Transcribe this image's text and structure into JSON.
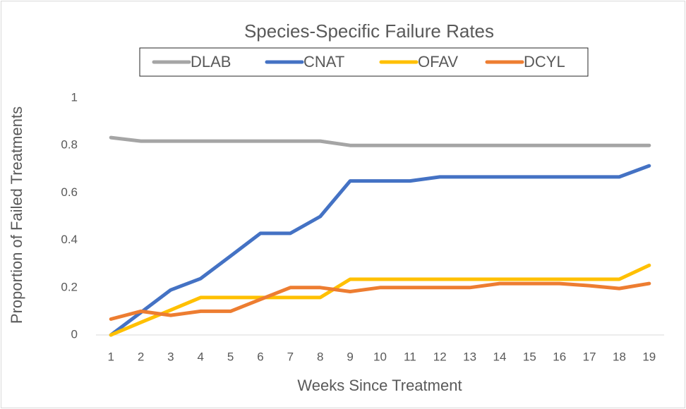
{
  "chart_data": {
    "type": "line",
    "title": "Species-Specific Failure Rates",
    "x_label": "Weeks Since Treatment",
    "y_label": "Proportion of Failed Treatments",
    "categories": [
      "1",
      "2",
      "3",
      "4",
      "5",
      "6",
      "7",
      "8",
      "9",
      "10",
      "11",
      "12",
      "13",
      "14",
      "15",
      "16",
      "17",
      "18",
      "19"
    ],
    "series": [
      {
        "name": "DLAB",
        "color": "#a5a5a5",
        "values": [
          0.833,
          0.818,
          0.818,
          0.818,
          0.818,
          0.818,
          0.818,
          0.818,
          0.8,
          0.8,
          0.8,
          0.8,
          0.8,
          0.8,
          0.8,
          0.8,
          0.8,
          0.8,
          0.8
        ]
      },
      {
        "name": "CNAT",
        "color": "#4472c4",
        "values": [
          0,
          0.095,
          0.19,
          0.238,
          0.333,
          0.429,
          0.429,
          0.5,
          0.65,
          0.65,
          0.65,
          0.667,
          0.667,
          0.667,
          0.667,
          0.667,
          0.667,
          0.667,
          0.714
        ]
      },
      {
        "name": "OFAV",
        "color": "#ffc000",
        "values": [
          0,
          0.053,
          0.105,
          0.158,
          0.158,
          0.158,
          0.158,
          0.158,
          0.235,
          0.235,
          0.235,
          0.235,
          0.235,
          0.235,
          0.235,
          0.235,
          0.235,
          0.235,
          0.294
        ]
      },
      {
        "name": "DCYL",
        "color": "#ed7d31",
        "values": [
          0.067,
          0.1,
          0.083,
          0.1,
          0.1,
          0.15,
          0.2,
          0.2,
          0.183,
          0.2,
          0.2,
          0.2,
          0.2,
          0.217,
          0.217,
          0.217,
          0.208,
          0.196,
          0.217
        ]
      }
    ],
    "ylim": [
      0,
      1
    ],
    "yticks": [
      0,
      0.2,
      0.4,
      0.6,
      0.8,
      1
    ],
    "grid": false,
    "legend": "top"
  }
}
